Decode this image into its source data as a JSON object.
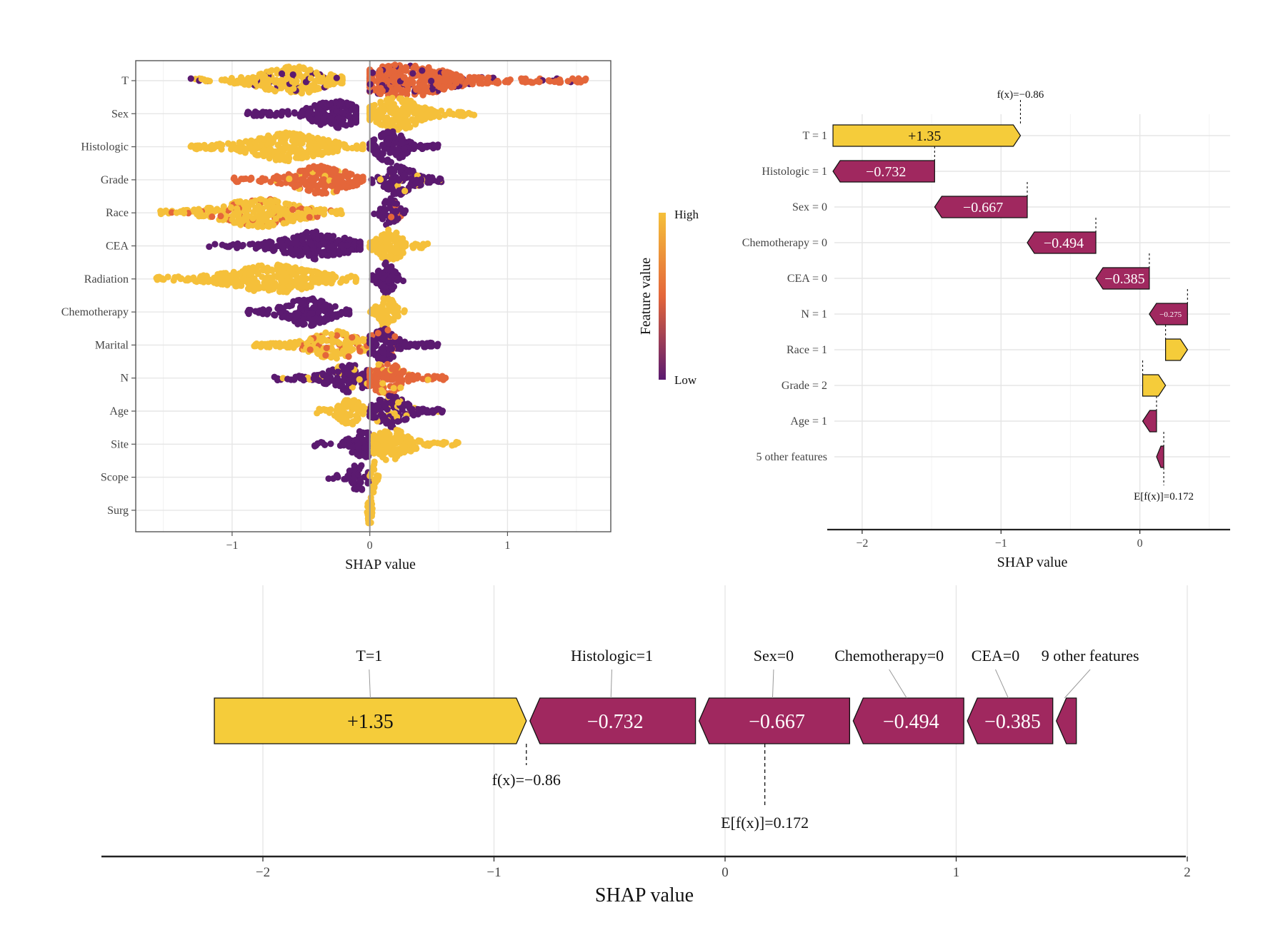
{
  "colors": {
    "high": "#F5C03A",
    "mid": "#E4663A",
    "low": "#5B1A70",
    "pos_bar": "#F5CC3A",
    "neg_bar": "#A0285F",
    "grid": "#E6E6E6",
    "axis": "#333333"
  },
  "chart_data": [
    {
      "id": "beeswarm",
      "type": "scatter",
      "title": "",
      "xlabel": "SHAP value",
      "ylabel": "",
      "xlim": [
        -1.7,
        1.75
      ],
      "xticks": [
        -1,
        0,
        1
      ],
      "xtick_labels": [
        "−1",
        "0",
        "1"
      ],
      "grid": true,
      "colorbar": {
        "label": "Feature value",
        "high": "High",
        "low": "Low"
      },
      "features": [
        {
          "name": "T",
          "neg": [
            -1.3,
            -0.2
          ],
          "neg_color": "high",
          "neg_peak": -0.55,
          "pos": [
            0.0,
            1.58
          ],
          "pos_color": "mid",
          "pos_peak": 0.25,
          "mix": "low",
          "pos_width": 0.6
        },
        {
          "name": "Sex",
          "neg": [
            -0.92,
            -0.1
          ],
          "neg_color": "low",
          "neg_peak": -0.25,
          "pos": [
            0.0,
            0.82
          ],
          "pos_color": "high",
          "pos_peak": 0.2,
          "mix": "",
          "pos_width": 0.8
        },
        {
          "name": "Histologic",
          "neg": [
            -1.3,
            -0.05
          ],
          "neg_color": "high",
          "neg_peak": -0.6,
          "pos": [
            0.0,
            0.5
          ],
          "pos_color": "low",
          "pos_peak": 0.15,
          "mix": "",
          "pos_width": 0.8
        },
        {
          "name": "Grade",
          "neg": [
            -1.0,
            -0.05
          ],
          "neg_color": "mid",
          "neg_peak": -0.35,
          "pos": [
            0.0,
            0.52
          ],
          "pos_color": "low",
          "pos_peak": 0.22,
          "mix": "high",
          "pos_width": 0.7
        },
        {
          "name": "Race",
          "neg": [
            -1.52,
            -0.2
          ],
          "neg_color": "high",
          "neg_peak": -0.8,
          "pos": [
            0.03,
            0.27
          ],
          "pos_color": "low",
          "pos_peak": 0.15,
          "mix": "mid",
          "pos_width": 0.8
        },
        {
          "name": "CEA",
          "neg": [
            -1.17,
            -0.07
          ],
          "neg_color": "low",
          "neg_peak": -0.4,
          "pos": [
            0.0,
            0.42
          ],
          "pos_color": "high",
          "pos_peak": 0.15,
          "mix": "",
          "pos_width": 0.8
        },
        {
          "name": "Radiation",
          "neg": [
            -1.55,
            -0.1
          ],
          "neg_color": "high",
          "neg_peak": -0.7,
          "pos": [
            0.0,
            0.28
          ],
          "pos_color": "low",
          "pos_peak": 0.12,
          "mix": "",
          "pos_width": 0.8
        },
        {
          "name": "Chemotherapy",
          "neg": [
            -0.9,
            -0.15
          ],
          "neg_color": "low",
          "neg_peak": -0.45,
          "pos": [
            0.0,
            0.28
          ],
          "pos_color": "high",
          "pos_peak": 0.12,
          "mix": "",
          "pos_width": 0.7
        },
        {
          "name": "Marital",
          "neg": [
            -0.85,
            -0.02
          ],
          "neg_color": "high",
          "neg_peak": -0.25,
          "pos": [
            0.0,
            0.5
          ],
          "pos_color": "low",
          "pos_peak": 0.1,
          "mix": "mid",
          "pos_width": 0.6
        },
        {
          "name": "N",
          "neg": [
            -0.7,
            -0.02
          ],
          "neg_color": "low",
          "neg_peak": -0.15,
          "pos": [
            0.0,
            0.55
          ],
          "pos_color": "mid",
          "pos_peak": 0.12,
          "mix": "high",
          "pos_width": 0.9
        },
        {
          "name": "Age",
          "neg": [
            -0.4,
            -0.02
          ],
          "neg_color": "high",
          "neg_peak": -0.15,
          "pos": [
            0.0,
            0.55
          ],
          "pos_color": "low",
          "pos_peak": 0.15,
          "mix": "high",
          "pos_width": 0.7
        },
        {
          "name": "Site",
          "neg": [
            -0.43,
            -0.01
          ],
          "neg_color": "low",
          "neg_peak": -0.05,
          "pos": [
            0.03,
            0.65
          ],
          "pos_color": "high",
          "pos_peak": 0.15,
          "mix": "",
          "pos_width": 0.6
        },
        {
          "name": "Scope",
          "neg": [
            -0.3,
            -0.01
          ],
          "neg_color": "low",
          "neg_peak": -0.08,
          "pos": [
            0.0,
            0.08
          ],
          "pos_color": "high",
          "pos_peak": 0.03,
          "mix": "",
          "pos_width": 0.7
        },
        {
          "name": "Surg",
          "neg": [
            -0.02,
            0.0
          ],
          "neg_color": "high",
          "neg_peak": -0.01,
          "pos": [
            0.0,
            0.02
          ],
          "pos_color": "high",
          "pos_peak": 0.01,
          "mix": "",
          "pos_width": 0.6
        }
      ]
    },
    {
      "id": "waterfall",
      "type": "bar",
      "xlabel": "SHAP value",
      "xlim": [
        -2.2,
        0.65
      ],
      "xticks": [
        -2,
        -1,
        0
      ],
      "xtick_labels": [
        "−2",
        "−1",
        "0"
      ],
      "grid": true,
      "fx_label": "f(x)=−0.86",
      "efx_label": "E[f(x)]=0.172",
      "fx": -0.86,
      "efx": 0.172,
      "bars": [
        {
          "feature": "T = 1",
          "start": -2.21,
          "end": -0.86,
          "value": 1.35,
          "label": "+1.35"
        },
        {
          "feature": "Histologic = 1",
          "start": -2.21,
          "end": -1.478,
          "value": -0.732,
          "label": "−0.732"
        },
        {
          "feature": "Sex = 0",
          "start": -1.478,
          "end": -0.811,
          "value": -0.667,
          "label": "−0.667"
        },
        {
          "feature": "Chemotherapy = 0",
          "start": -0.811,
          "end": -0.317,
          "value": -0.494,
          "label": "−0.494"
        },
        {
          "feature": "CEA = 0",
          "start": -0.317,
          "end": 0.068,
          "value": -0.385,
          "label": "−0.385"
        },
        {
          "feature": "N = 1",
          "start": 0.068,
          "end": 0.343,
          "value": -0.275,
          "label": "−0.275"
        },
        {
          "feature": "Race = 1",
          "start": 0.185,
          "end": 0.343,
          "value": 0.158,
          "label": ""
        },
        {
          "feature": "Grade = 2",
          "start": 0.02,
          "end": 0.185,
          "value": 0.165,
          "label": ""
        },
        {
          "feature": "Age = 1",
          "start": 0.02,
          "end": 0.12,
          "value": -0.1,
          "label": ""
        },
        {
          "feature": "5 other features",
          "start": 0.12,
          "end": 0.172,
          "value": -0.052,
          "label": ""
        }
      ]
    },
    {
      "id": "force",
      "type": "bar",
      "xlabel": "SHAP value",
      "xlim": [
        -2.7,
        2.0
      ],
      "xticks": [
        -2,
        -1,
        0,
        1,
        2
      ],
      "xtick_labels": [
        "−2",
        "−1",
        "0",
        "1",
        "2"
      ],
      "grid": true,
      "fx_label": "f(x)=−0.86",
      "efx_label": "E[f(x)]=0.172",
      "fx": -0.86,
      "efx": 0.172,
      "segments": [
        {
          "feature": "T=1",
          "start": -2.21,
          "end": -0.86,
          "value": 1.35,
          "label": "+1.35",
          "label_x": -1.54
        },
        {
          "feature": "Histologic=1",
          "start": -0.86,
          "end": -0.128,
          "value": -0.732,
          "label": "−0.732",
          "label_x": -0.49
        },
        {
          "feature": "Sex=0",
          "start": -0.128,
          "end": 0.539,
          "value": -0.667,
          "label": "−0.667",
          "label_x": 0.21
        },
        {
          "feature": "Chemotherapy=0",
          "start": 0.539,
          "end": 1.033,
          "value": -0.494,
          "label": "−0.494",
          "label_x": 0.71
        },
        {
          "feature": "CEA=0",
          "start": 1.033,
          "end": 1.418,
          "value": -0.385,
          "label": "−0.385",
          "label_x": 1.17
        },
        {
          "feature": "9 other features",
          "start": 1.418,
          "end": 1.52,
          "value": -0.102,
          "label": "",
          "label_x": 1.58
        }
      ]
    }
  ]
}
